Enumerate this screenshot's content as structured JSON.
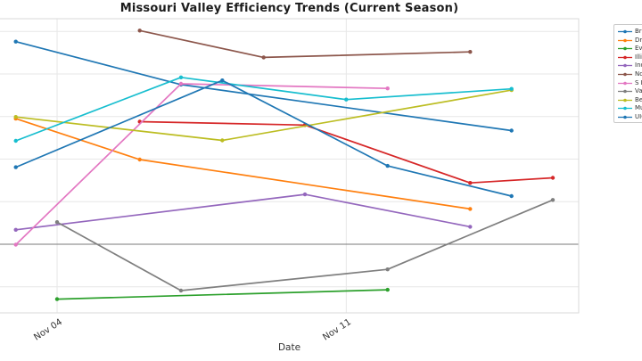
{
  "chart_data": {
    "type": "line",
    "title": "Missouri Valley Efficiency Trends (Current Season)",
    "xlabel": "Date",
    "ylabel": "",
    "x_tick_labels": [
      "Nov 04",
      "Nov 11"
    ],
    "x_tick_days": [
      4,
      11
    ],
    "x_range_days": [
      2.62,
      16.63
    ],
    "y_axis_note": "y-axis tick labels are cropped off the left edge of the screenshot; values are expressed in units of one horizontal gridline spacing, 0 = the dark horizontal zero line",
    "y_gridlines_units": [
      -1,
      1,
      2,
      3,
      4,
      5
    ],
    "zero_line": true,
    "grid": true,
    "legend_position": "right, clipped by the right edge of the image (labels truncated)",
    "series": [
      {
        "name": "Bra",
        "color": "#1f77b4",
        "points": [
          {
            "day": 3,
            "value": 4.76
          },
          {
            "day": 7,
            "value": 3.75
          },
          {
            "day": 15,
            "value": 2.67
          }
        ]
      },
      {
        "name": "Dra",
        "color": "#ff7f0e",
        "points": [
          {
            "day": 3,
            "value": 2.95
          },
          {
            "day": 6,
            "value": 1.99
          },
          {
            "day": 14,
            "value": 0.83
          }
        ]
      },
      {
        "name": "Eva",
        "color": "#2ca02c",
        "points": [
          {
            "day": 4,
            "value": -1.29
          },
          {
            "day": 12,
            "value": -1.07
          }
        ]
      },
      {
        "name": "Illin",
        "color": "#d62728",
        "points": [
          {
            "day": 6,
            "value": 2.88
          },
          {
            "day": 10,
            "value": 2.8
          },
          {
            "day": 14,
            "value": 1.44
          },
          {
            "day": 16,
            "value": 1.56
          }
        ]
      },
      {
        "name": "Ind",
        "color": "#9467bd",
        "points": [
          {
            "day": 3,
            "value": 0.34
          },
          {
            "day": 10,
            "value": 1.17
          },
          {
            "day": 14,
            "value": 0.41
          }
        ]
      },
      {
        "name": "Nor",
        "color": "#8c564b",
        "points": [
          {
            "day": 6,
            "value": 5.02
          },
          {
            "day": 9,
            "value": 4.39
          },
          {
            "day": 14,
            "value": 4.52
          }
        ]
      },
      {
        "name": "S Il",
        "color": "#e377c2",
        "points": [
          {
            "day": 3,
            "value": -0.01
          },
          {
            "day": 7,
            "value": 3.77
          },
          {
            "day": 12,
            "value": 3.66
          }
        ]
      },
      {
        "name": "Val",
        "color": "#7f7f7f",
        "points": [
          {
            "day": 4,
            "value": 0.52
          },
          {
            "day": 7,
            "value": -1.09
          },
          {
            "day": 12,
            "value": -0.59
          },
          {
            "day": 16,
            "value": 1.04
          }
        ]
      },
      {
        "name": "Bel",
        "color": "#bcbd22",
        "points": [
          {
            "day": 3,
            "value": 2.99
          },
          {
            "day": 8,
            "value": 2.44
          },
          {
            "day": 15,
            "value": 3.62
          }
        ]
      },
      {
        "name": "Mu",
        "color": "#17becf",
        "points": [
          {
            "day": 3,
            "value": 2.43
          },
          {
            "day": 7,
            "value": 3.92
          },
          {
            "day": 11,
            "value": 3.4
          },
          {
            "day": 15,
            "value": 3.65
          }
        ]
      },
      {
        "name": "UIC",
        "color": "#1f77b4",
        "points": [
          {
            "day": 3,
            "value": 1.81
          },
          {
            "day": 8,
            "value": 3.85
          },
          {
            "day": 12,
            "value": 1.84
          },
          {
            "day": 15,
            "value": 1.13
          }
        ]
      }
    ]
  }
}
